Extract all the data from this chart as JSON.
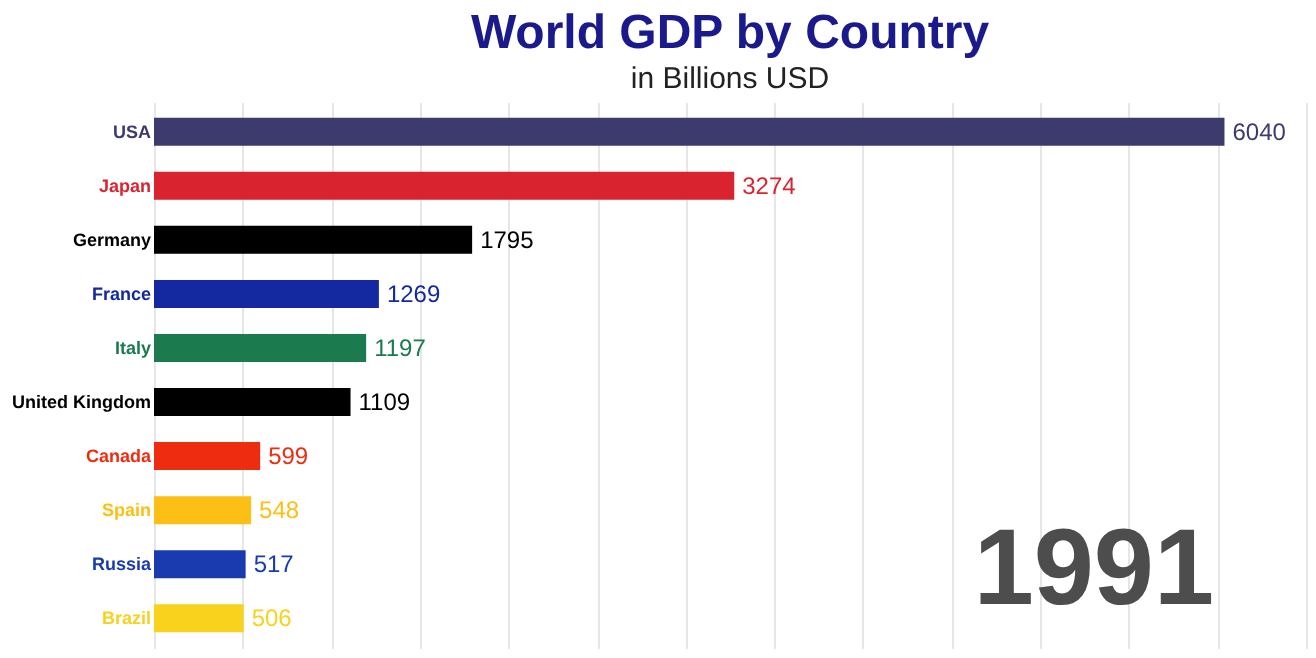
{
  "chart_data": {
    "type": "bar",
    "orientation": "horizontal",
    "title": "World GDP by Country",
    "subtitle": "in Billions USD",
    "categories": [
      "USA",
      "Japan",
      "Germany",
      "France",
      "Italy",
      "United Kingdom",
      "Canada",
      "Spain",
      "Russia",
      "Brazil"
    ],
    "values": [
      6040,
      3274,
      1795,
      1269,
      1197,
      1109,
      599,
      548,
      517,
      506
    ],
    "colors": [
      "#3d3a6e",
      "#d9242f",
      "#000000",
      "#1428a0",
      "#1b7a4e",
      "#000000",
      "#ee2d10",
      "#fcbf16",
      "#1a3bb0",
      "#f8d21c"
    ],
    "xlim": [
      0,
      6500
    ],
    "xticks": [
      0,
      500,
      1000,
      1500,
      2000,
      2500,
      3000,
      3500,
      4000,
      4500,
      5000,
      5500,
      6000,
      6500
    ],
    "grid": "x",
    "tick_labels": "y",
    "data_labels": true,
    "annotations": [
      "1991"
    ]
  }
}
